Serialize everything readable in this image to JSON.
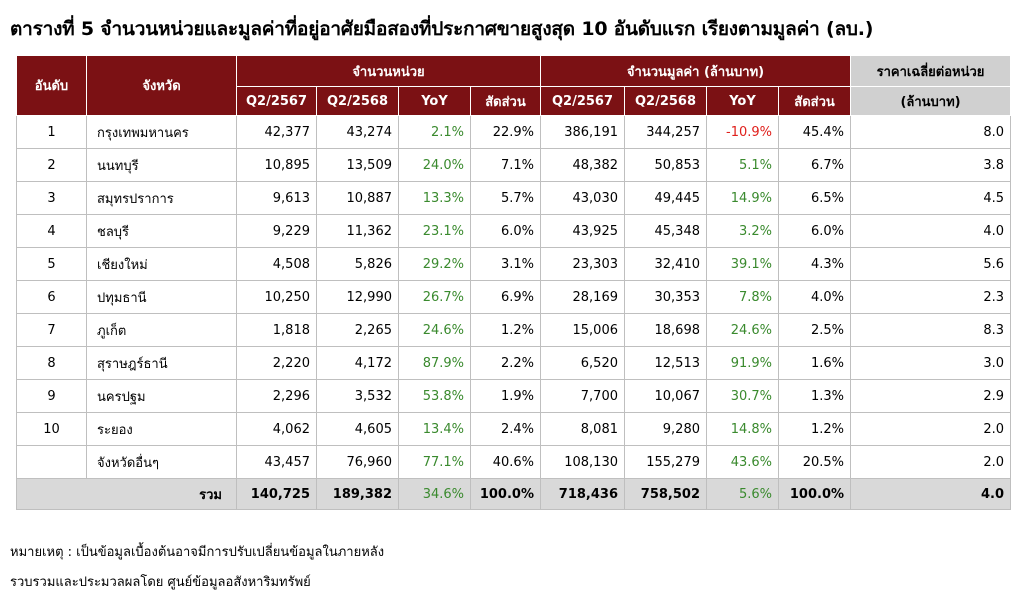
{
  "title": "ตารางที่ 5 จำนวนหน่วยและมูลค่าที่อยู่อาศัยมือสองที่ประกาศขายสูงสุด 10 อันดับแรก เรียงตามมูลค่า (ลบ.)",
  "header": {
    "rank": "อันดับ",
    "province": "จังหวัด",
    "units_group": "จำนวนหน่วย",
    "value_group": "จำนวนมูลค่า (ล้านบาท)",
    "avg_line1": "ราคาเฉลี่ยต่อหน่วย",
    "avg_line2": "(ล้านบาท)",
    "q2_2567": "Q2/2567",
    "q2_2568": "Q2/2568",
    "yoy": "YoY",
    "share": "สัดส่วน"
  },
  "rows": [
    {
      "rank": "1",
      "province": "กรุงเทพมหานคร",
      "u67": "42,377",
      "u68": "43,274",
      "uyoy": "2.1%",
      "ushare": "22.9%",
      "v67": "386,191",
      "v68": "344,257",
      "vyoy": "-10.9%",
      "vshare": "45.4%",
      "avg": "8.0"
    },
    {
      "rank": "2",
      "province": "นนทบุรี",
      "u67": "10,895",
      "u68": "13,509",
      "uyoy": "24.0%",
      "ushare": "7.1%",
      "v67": "48,382",
      "v68": "50,853",
      "vyoy": "5.1%",
      "vshare": "6.7%",
      "avg": "3.8"
    },
    {
      "rank": "3",
      "province": "สมุทรปราการ",
      "u67": "9,613",
      "u68": "10,887",
      "uyoy": "13.3%",
      "ushare": "5.7%",
      "v67": "43,030",
      "v68": "49,445",
      "vyoy": "14.9%",
      "vshare": "6.5%",
      "avg": "4.5"
    },
    {
      "rank": "4",
      "province": "ชลบุรี",
      "u67": "9,229",
      "u68": "11,362",
      "uyoy": "23.1%",
      "ushare": "6.0%",
      "v67": "43,925",
      "v68": "45,348",
      "vyoy": "3.2%",
      "vshare": "6.0%",
      "avg": "4.0"
    },
    {
      "rank": "5",
      "province": "เชียงใหม่",
      "u67": "4,508",
      "u68": "5,826",
      "uyoy": "29.2%",
      "ushare": "3.1%",
      "v67": "23,303",
      "v68": "32,410",
      "vyoy": "39.1%",
      "vshare": "4.3%",
      "avg": "5.6"
    },
    {
      "rank": "6",
      "province": "ปทุมธานี",
      "u67": "10,250",
      "u68": "12,990",
      "uyoy": "26.7%",
      "ushare": "6.9%",
      "v67": "28,169",
      "v68": "30,353",
      "vyoy": "7.8%",
      "vshare": "4.0%",
      "avg": "2.3"
    },
    {
      "rank": "7",
      "province": "ภูเก็ต",
      "u67": "1,818",
      "u68": "2,265",
      "uyoy": "24.6%",
      "ushare": "1.2%",
      "v67": "15,006",
      "v68": "18,698",
      "vyoy": "24.6%",
      "vshare": "2.5%",
      "avg": "8.3"
    },
    {
      "rank": "8",
      "province": "สุราษฎร์ธานี",
      "u67": "2,220",
      "u68": "4,172",
      "uyoy": "87.9%",
      "ushare": "2.2%",
      "v67": "6,520",
      "v68": "12,513",
      "vyoy": "91.9%",
      "vshare": "1.6%",
      "avg": "3.0"
    },
    {
      "rank": "9",
      "province": "นครปฐม",
      "u67": "2,296",
      "u68": "3,532",
      "uyoy": "53.8%",
      "ushare": "1.9%",
      "v67": "7,700",
      "v68": "10,067",
      "vyoy": "30.7%",
      "vshare": "1.3%",
      "avg": "2.9"
    },
    {
      "rank": "10",
      "province": "ระยอง",
      "u67": "4,062",
      "u68": "4,605",
      "uyoy": "13.4%",
      "ushare": "2.4%",
      "v67": "8,081",
      "v68": "9,280",
      "vyoy": "14.8%",
      "vshare": "1.2%",
      "avg": "2.0"
    },
    {
      "rank": "",
      "province": "จังหวัดอื่นๆ",
      "u67": "43,457",
      "u68": "76,960",
      "uyoy": "77.1%",
      "ushare": "40.6%",
      "v67": "108,130",
      "v68": "155,279",
      "vyoy": "43.6%",
      "vshare": "20.5%",
      "avg": "2.0"
    }
  ],
  "total": {
    "label": "รวม",
    "u67": "140,725",
    "u68": "189,382",
    "uyoy": "34.6%",
    "ushare": "100.0%",
    "v67": "718,436",
    "v68": "758,502",
    "vyoy": "5.6%",
    "vshare": "100.0%",
    "avg": "4.0"
  },
  "notes": {
    "remark": "หมายเหตุ : เป็นข้อมูลเบื้องต้นอาจมีการปรับเปลี่ยนข้อมูลในภายหลัง",
    "source": "รวบรวมและประมวลผลโดย ศูนย์ข้อมูลอสังหาริมทรัพย์"
  },
  "colors": {
    "header_bg": "#7b1114",
    "positive": "#3a8a2e",
    "negative": "#e0201c",
    "total_bg": "#d9d9d9"
  }
}
